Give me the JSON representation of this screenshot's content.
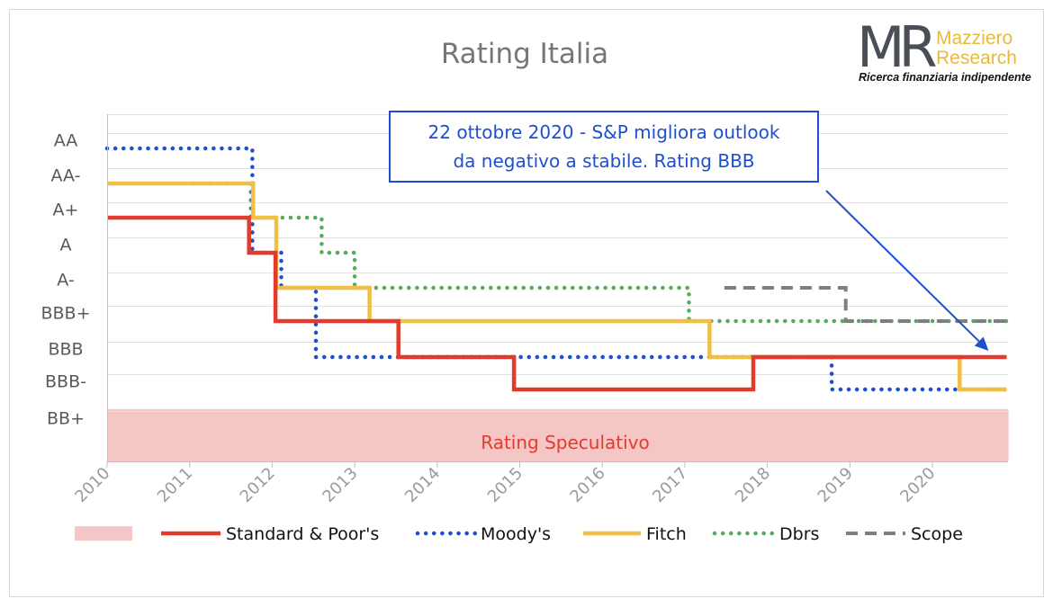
{
  "chart_data": {
    "type": "line",
    "title": "Rating Italia",
    "categories_x": [
      "2010",
      "2011",
      "2012",
      "2013",
      "2014",
      "2015",
      "2016",
      "2017",
      "2018",
      "2019",
      "2020"
    ],
    "xlim": [
      2010,
      2020.9
    ],
    "y_categories": [
      "BB+",
      "BBB-",
      "BBB",
      "BBB+",
      "A-",
      "A",
      "A+",
      "AA-",
      "AA"
    ],
    "grid": true,
    "legend_position": "bottom",
    "shaded_region": {
      "label": "Rating Speculativo",
      "color": "#f5c6c6",
      "label_color": "#e23b2e",
      "from": "BB+",
      "legend_label": ""
    },
    "annotation": {
      "line1": "22 ottobre 2020 - S&P migliora outlook",
      "line2": "da negativo a stabile. Rating BBB",
      "arrow_to": {
        "x": 2020.67,
        "y": "BBB"
      }
    },
    "series": [
      {
        "name": "Standard & Poor's",
        "color": "#e23b2e",
        "style": "solid",
        "points": [
          [
            2010,
            "A+"
          ],
          [
            2011.72,
            "A+"
          ],
          [
            2011.72,
            "A"
          ],
          [
            2012.04,
            "A"
          ],
          [
            2012.04,
            "BBB+"
          ],
          [
            2013.53,
            "BBB+"
          ],
          [
            2013.53,
            "BBB"
          ],
          [
            2014.93,
            "BBB"
          ],
          [
            2014.93,
            "BBB-"
          ],
          [
            2017.83,
            "BBB-"
          ],
          [
            2017.83,
            "BBB"
          ],
          [
            2020.9,
            "BBB"
          ]
        ]
      },
      {
        "name": "Moody's",
        "color": "#1f4fd1",
        "style": "dotted",
        "points": [
          [
            2010,
            "AA"
          ],
          [
            2011.76,
            "AA"
          ],
          [
            2011.76,
            "A"
          ],
          [
            2012.11,
            "A"
          ],
          [
            2012.11,
            "A-"
          ],
          [
            2012.53,
            "A-"
          ],
          [
            2012.53,
            "BBB"
          ],
          [
            2018.78,
            "BBB"
          ],
          [
            2018.78,
            "BBB-"
          ],
          [
            2020.9,
            "BBB-"
          ]
        ]
      },
      {
        "name": "Fitch",
        "color": "#f0bf45",
        "style": "solid",
        "points": [
          [
            2010,
            "AA-"
          ],
          [
            2011.77,
            "AA-"
          ],
          [
            2011.77,
            "A+"
          ],
          [
            2012.05,
            "A+"
          ],
          [
            2012.05,
            "A-"
          ],
          [
            2013.18,
            "A-"
          ],
          [
            2013.18,
            "BBB+"
          ],
          [
            2017.3,
            "BBB+"
          ],
          [
            2017.3,
            "BBB"
          ],
          [
            2020.33,
            "BBB"
          ],
          [
            2020.33,
            "BBB-"
          ],
          [
            2020.9,
            "BBB-"
          ]
        ]
      },
      {
        "name": "Dbrs",
        "color": "#5aaa5e",
        "style": "dotted",
        "points": [
          [
            2011.05,
            "AA-"
          ],
          [
            2011.74,
            "AA-"
          ],
          [
            2011.74,
            "A+"
          ],
          [
            2012.6,
            "A+"
          ],
          [
            2012.6,
            "A"
          ],
          [
            2013.0,
            "A"
          ],
          [
            2013.0,
            "A-"
          ],
          [
            2017.05,
            "A-"
          ],
          [
            2017.05,
            "BBB+"
          ],
          [
            2020.9,
            "BBB+"
          ]
        ]
      },
      {
        "name": "Scope",
        "color": "#7f7f7f",
        "style": "dashed",
        "points": [
          [
            2017.48,
            "A-"
          ],
          [
            2018.95,
            "A-"
          ],
          [
            2018.95,
            "BBB+"
          ],
          [
            2020.9,
            "BBB+"
          ]
        ]
      }
    ]
  },
  "logo": {
    "mark": "MR",
    "name_line1": "Mazziero",
    "name_line2": "Research",
    "tagline": "Ricerca finanziaria indipendente"
  }
}
